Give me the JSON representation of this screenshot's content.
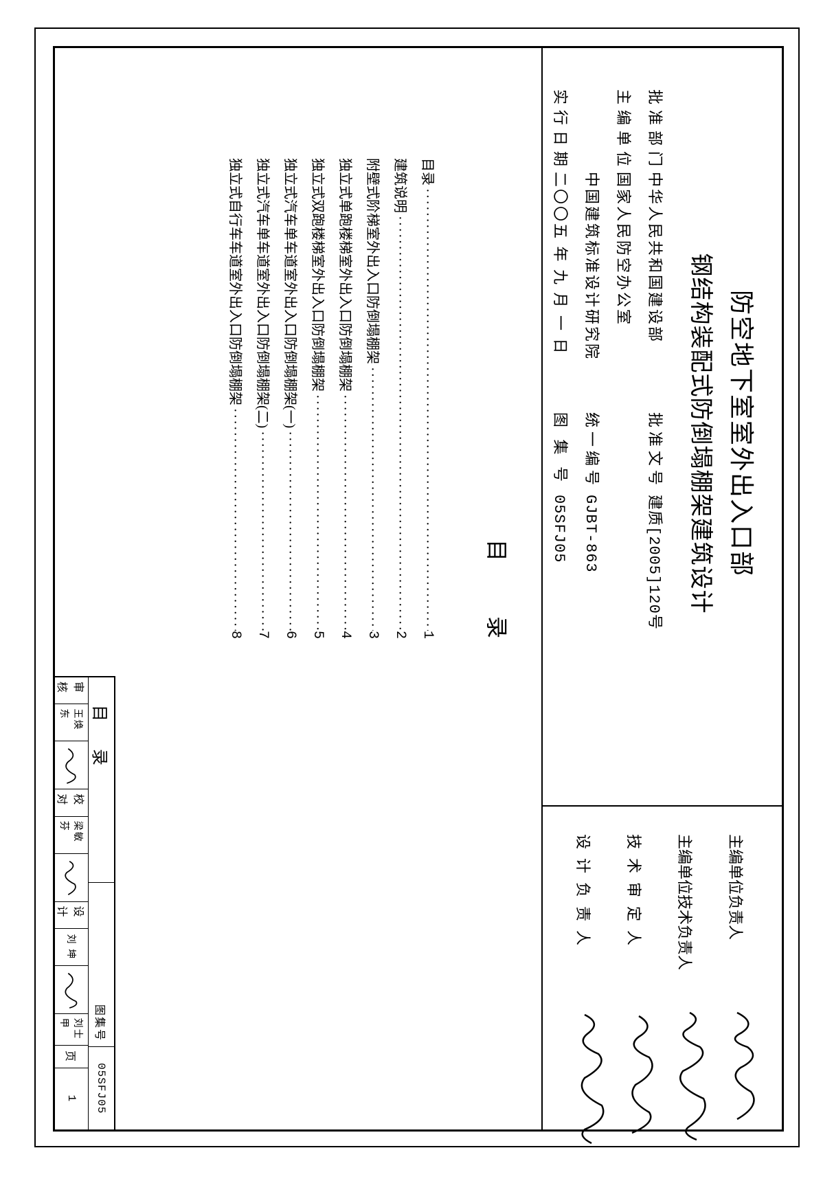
{
  "header": {
    "title_line1": "防空地下室室外出入口部",
    "title_line2": "钢结构装配式防倒塌棚架建筑设计",
    "rows": [
      {
        "label": "批准部门",
        "val1": "中华人民共和国建设部",
        "label2": "批准文号",
        "val2": "建质[2005]120号"
      },
      {
        "label": "主编单位",
        "val1": "国家人民防空办公室",
        "label2": "",
        "val2": ""
      },
      {
        "label": "",
        "val1": "中国建筑标准设计研究院",
        "label2": "统一编号",
        "val2": "GJBT-863"
      },
      {
        "label": "实行日期",
        "val1": "二〇〇五 年 九 月 一 日",
        "label2": "图 集 号",
        "val2": "05SFJ05"
      }
    ]
  },
  "signatures": [
    {
      "label": "主编单位负责人",
      "cls": "tight"
    },
    {
      "label": "主编单位技术负责人",
      "cls": "tight"
    },
    {
      "label": "技术审定人",
      "cls": "med"
    },
    {
      "label": "设计负责人",
      "cls": "med"
    }
  ],
  "toc": {
    "heading": "目录",
    "items": [
      {
        "text": "目录",
        "page": "1"
      },
      {
        "text": "建筑说明",
        "page": "2"
      },
      {
        "text": "附壁式阶梯室外出入口防倒塌棚架",
        "page": "3"
      },
      {
        "text": "独立式单跑楼梯室外出入口防倒塌棚架",
        "page": "4"
      },
      {
        "text": "独立式双跑楼梯室外出入口防倒塌棚架",
        "page": "5"
      },
      {
        "text": "独立式汽车单车道室外出入口防倒塌棚架(一)",
        "page": "6"
      },
      {
        "text": "独立式汽车单车道室外出入口防倒塌棚架(二)",
        "page": "7"
      },
      {
        "text": "独立式自行车车道室外出入口防倒塌棚架",
        "page": "8"
      }
    ]
  },
  "title_block": {
    "sheet_title": "目录",
    "album_label": "图集号",
    "album_code": "05SFJ05",
    "page_label": "页",
    "page_num": "1",
    "roles": [
      {
        "role": "审核",
        "name": "王焕东"
      },
      {
        "role": "校对",
        "name": "梁敏芬"
      },
      {
        "role": "设计",
        "name": "刘 坤"
      }
    ],
    "last_name": "刘士甲"
  },
  "style": {
    "border_color": "#000000",
    "bg_color": "#ffffff",
    "text_color": "#000000"
  }
}
